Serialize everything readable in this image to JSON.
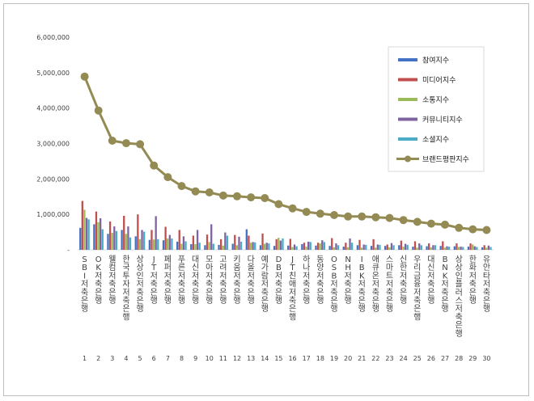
{
  "chart_data": {
    "type": "bar",
    "title": "",
    "xlabel": "",
    "ylabel": "",
    "ylim": [
      0,
      6000000
    ],
    "yticks": [
      "-",
      "1,000,000",
      "2,000,000",
      "3,000,000",
      "4,000,000",
      "5,000,000",
      "6,000,000"
    ],
    "grid": false,
    "legend_position": "top-right",
    "ranks": [
      "1",
      "2",
      "3",
      "4",
      "5",
      "6",
      "7",
      "8",
      "9",
      "10",
      "11",
      "12",
      "13",
      "14",
      "15",
      "16",
      "17",
      "18",
      "19",
      "20",
      "21",
      "22",
      "23",
      "24",
      "25",
      "26",
      "27",
      "28",
      "29",
      "30"
    ],
    "categories": [
      "SBI저축은행",
      "OK저축은행",
      "웰컴저축은행",
      "한국투자저축은행",
      "상상인저축은행",
      "JT저축은행",
      "페퍼저축은행",
      "푸른저축은행",
      "대신저축은행",
      "모아저축은행",
      "고려저축은행",
      "키움저축은행",
      "다올저축은행",
      "예가람저축은행",
      "DB저축은행",
      "JT친애저축은행",
      "하나저축은행",
      "동양저축은행",
      "OSB저축은행",
      "NH저축은행",
      "IBK저축은행",
      "애큐온저축은행",
      "스마트저축은행",
      "신한저축은행",
      "우리금융저축은행",
      "대신저축은행",
      "BNK저축은행",
      "상상인플러스저축은행",
      "한화저축은행",
      "유안타저축은행"
    ],
    "series": [
      {
        "name": "참여지수",
        "color": "#4472c4",
        "type": "bar",
        "values": [
          620000,
          720000,
          450000,
          560000,
          380000,
          280000,
          270000,
          230000,
          160000,
          130000,
          140000,
          170000,
          580000,
          130000,
          110000,
          120000,
          160000,
          120000,
          110000,
          90000,
          130000,
          110000,
          110000,
          130000,
          90000,
          100000,
          110000,
          100000,
          90000,
          70000
        ]
      },
      {
        "name": "미디어지수",
        "color": "#c0504d",
        "type": "bar",
        "values": [
          1380000,
          1080000,
          800000,
          960000,
          1000000,
          560000,
          650000,
          560000,
          400000,
          430000,
          300000,
          420000,
          400000,
          460000,
          300000,
          310000,
          200000,
          200000,
          330000,
          200000,
          280000,
          300000,
          150000,
          260000,
          240000,
          180000,
          240000,
          180000,
          180000,
          130000
        ]
      },
      {
        "name": "소통지수",
        "color": "#9bbb59",
        "type": "bar",
        "values": [
          1130000,
          780000,
          480000,
          450000,
          300000,
          290000,
          320000,
          170000,
          160000,
          220000,
          120000,
          130000,
          200000,
          170000,
          340000,
          80000,
          90000,
          180000,
          70000,
          70000,
          60000,
          60000,
          70000,
          90000,
          60000,
          70000,
          60000,
          80000,
          150000,
          60000
        ]
      },
      {
        "name": "커뮤니티지수",
        "color": "#8064a2",
        "type": "bar",
        "values": [
          900000,
          890000,
          660000,
          660000,
          560000,
          950000,
          420000,
          380000,
          560000,
          720000,
          490000,
          370000,
          220000,
          200000,
          260000,
          150000,
          230000,
          270000,
          180000,
          320000,
          150000,
          150000,
          190000,
          170000,
          180000,
          130000,
          100000,
          90000,
          100000,
          120000
        ]
      },
      {
        "name": "소셜지수",
        "color": "#4bacc6",
        "type": "bar",
        "values": [
          860000,
          580000,
          530000,
          350000,
          510000,
          300000,
          320000,
          240000,
          200000,
          170000,
          400000,
          230000,
          210000,
          180000,
          320000,
          100000,
          220000,
          220000,
          130000,
          200000,
          140000,
          140000,
          130000,
          140000,
          130000,
          130000,
          90000,
          80000,
          80000,
          80000
        ]
      },
      {
        "name": "브랜드평판지수",
        "color": "#948a54",
        "type": "line",
        "values": [
          4890000,
          3930000,
          3080000,
          3010000,
          2980000,
          2380000,
          2050000,
          1800000,
          1650000,
          1620000,
          1530000,
          1510000,
          1480000,
          1460000,
          1290000,
          1170000,
          1070000,
          1020000,
          980000,
          940000,
          940000,
          920000,
          900000,
          840000,
          790000,
          740000,
          710000,
          620000,
          580000,
          560000
        ]
      }
    ]
  }
}
